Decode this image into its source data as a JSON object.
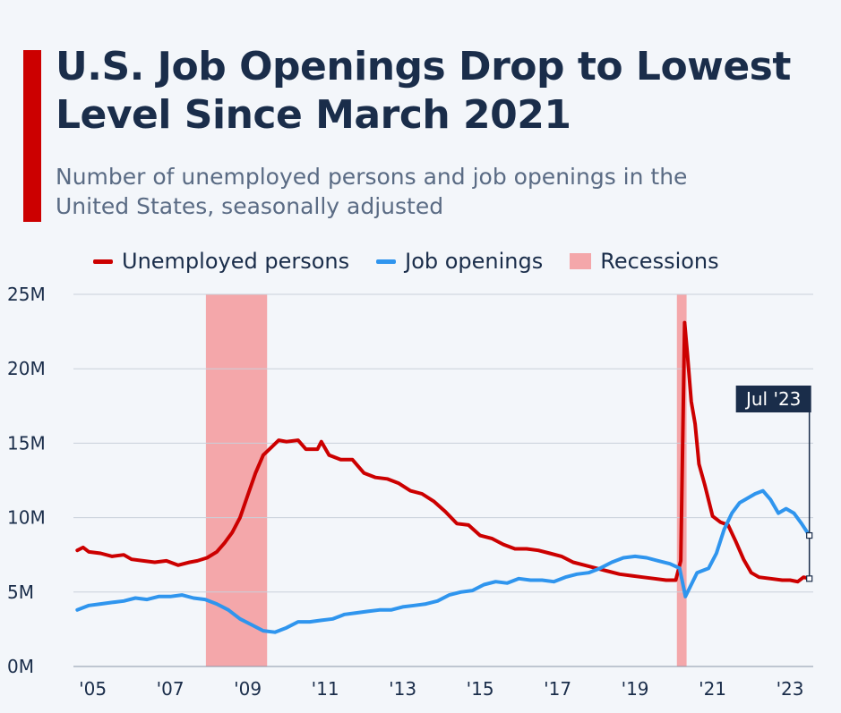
{
  "header": {
    "title": "U.S. Job Openings Drop to Lowest Level Since March 2021",
    "subtitle": "Number of unemployed persons and job openings in the United States, seasonally adjusted"
  },
  "colors": {
    "accent": "#cc0000",
    "unemployed": "#cc0000",
    "openings": "#2f95ee",
    "recession": "#f4a7aa",
    "grid": "#c9d0da",
    "text": "#1a2d4a"
  },
  "legend": {
    "unemployed_label": "Unemployed persons",
    "openings_label": "Job openings",
    "recessions_label": "Recessions"
  },
  "chart_data": {
    "type": "line",
    "xlim": [
      2004.5,
      2023.6
    ],
    "ylim": [
      0,
      25
    ],
    "y_unit": "millions",
    "grid": true,
    "legend_position": "top",
    "ytick_values": [
      0,
      5,
      10,
      15,
      20,
      25
    ],
    "ytick_labels": [
      "0M",
      "5M",
      "10M",
      "15M",
      "20M",
      "25M"
    ],
    "xtick_values": [
      2005,
      2007,
      2009,
      2011,
      2013,
      2015,
      2017,
      2019,
      2021,
      2023
    ],
    "xtick_labels": [
      "'05",
      "'07",
      "'09",
      "'11",
      "'13",
      "'15",
      "'17",
      "'19",
      "'21",
      "'23"
    ],
    "recessions": [
      {
        "start": 2007.92,
        "end": 2009.5
      },
      {
        "start": 2020.08,
        "end": 2020.33
      }
    ],
    "annotation": {
      "label": "Jul '23",
      "x": 2023.5
    },
    "series": [
      {
        "name": "Unemployed persons",
        "points": [
          [
            2004.6,
            7.8
          ],
          [
            2004.75,
            8.0
          ],
          [
            2004.9,
            7.7
          ],
          [
            2005.2,
            7.6
          ],
          [
            2005.5,
            7.4
          ],
          [
            2005.8,
            7.5
          ],
          [
            2006.0,
            7.2
          ],
          [
            2006.3,
            7.1
          ],
          [
            2006.6,
            7.0
          ],
          [
            2006.9,
            7.1
          ],
          [
            2007.2,
            6.8
          ],
          [
            2007.5,
            7.0
          ],
          [
            2007.7,
            7.1
          ],
          [
            2007.95,
            7.3
          ],
          [
            2008.2,
            7.7
          ],
          [
            2008.4,
            8.3
          ],
          [
            2008.6,
            9.0
          ],
          [
            2008.8,
            10.0
          ],
          [
            2009.0,
            11.5
          ],
          [
            2009.2,
            13.0
          ],
          [
            2009.4,
            14.2
          ],
          [
            2009.6,
            14.7
          ],
          [
            2009.8,
            15.2
          ],
          [
            2010.0,
            15.1
          ],
          [
            2010.3,
            15.2
          ],
          [
            2010.5,
            14.6
          ],
          [
            2010.8,
            14.6
          ],
          [
            2010.9,
            15.1
          ],
          [
            2011.1,
            14.2
          ],
          [
            2011.4,
            13.9
          ],
          [
            2011.7,
            13.9
          ],
          [
            2012.0,
            13.0
          ],
          [
            2012.3,
            12.7
          ],
          [
            2012.6,
            12.6
          ],
          [
            2012.9,
            12.3
          ],
          [
            2013.2,
            11.8
          ],
          [
            2013.5,
            11.6
          ],
          [
            2013.8,
            11.1
          ],
          [
            2014.1,
            10.4
          ],
          [
            2014.4,
            9.6
          ],
          [
            2014.7,
            9.5
          ],
          [
            2015.0,
            8.8
          ],
          [
            2015.3,
            8.6
          ],
          [
            2015.6,
            8.2
          ],
          [
            2015.9,
            7.9
          ],
          [
            2016.2,
            7.9
          ],
          [
            2016.5,
            7.8
          ],
          [
            2016.8,
            7.6
          ],
          [
            2017.1,
            7.4
          ],
          [
            2017.4,
            7.0
          ],
          [
            2017.7,
            6.8
          ],
          [
            2018.0,
            6.6
          ],
          [
            2018.3,
            6.4
          ],
          [
            2018.6,
            6.2
          ],
          [
            2018.9,
            6.1
          ],
          [
            2019.2,
            6.0
          ],
          [
            2019.5,
            5.9
          ],
          [
            2019.8,
            5.8
          ],
          [
            2020.05,
            5.8
          ],
          [
            2020.18,
            7.1
          ],
          [
            2020.28,
            23.1
          ],
          [
            2020.35,
            21.0
          ],
          [
            2020.45,
            17.8
          ],
          [
            2020.55,
            16.3
          ],
          [
            2020.65,
            13.6
          ],
          [
            2020.8,
            12.2
          ],
          [
            2021.0,
            10.1
          ],
          [
            2021.2,
            9.7
          ],
          [
            2021.4,
            9.5
          ],
          [
            2021.6,
            8.4
          ],
          [
            2021.8,
            7.2
          ],
          [
            2022.0,
            6.3
          ],
          [
            2022.2,
            6.0
          ],
          [
            2022.5,
            5.9
          ],
          [
            2022.8,
            5.8
          ],
          [
            2023.0,
            5.8
          ],
          [
            2023.2,
            5.7
          ],
          [
            2023.35,
            6.0
          ],
          [
            2023.5,
            5.9
          ]
        ]
      },
      {
        "name": "Job openings",
        "points": [
          [
            2004.6,
            3.8
          ],
          [
            2004.9,
            4.1
          ],
          [
            2005.2,
            4.2
          ],
          [
            2005.5,
            4.3
          ],
          [
            2005.8,
            4.4
          ],
          [
            2006.1,
            4.6
          ],
          [
            2006.4,
            4.5
          ],
          [
            2006.7,
            4.7
          ],
          [
            2007.0,
            4.7
          ],
          [
            2007.3,
            4.8
          ],
          [
            2007.6,
            4.6
          ],
          [
            2007.9,
            4.5
          ],
          [
            2008.2,
            4.2
          ],
          [
            2008.5,
            3.8
          ],
          [
            2008.8,
            3.2
          ],
          [
            2009.1,
            2.8
          ],
          [
            2009.4,
            2.4
          ],
          [
            2009.7,
            2.3
          ],
          [
            2010.0,
            2.6
          ],
          [
            2010.3,
            3.0
          ],
          [
            2010.6,
            3.0
          ],
          [
            2010.9,
            3.1
          ],
          [
            2011.2,
            3.2
          ],
          [
            2011.5,
            3.5
          ],
          [
            2011.8,
            3.6
          ],
          [
            2012.1,
            3.7
          ],
          [
            2012.4,
            3.8
          ],
          [
            2012.7,
            3.8
          ],
          [
            2013.0,
            4.0
          ],
          [
            2013.3,
            4.1
          ],
          [
            2013.6,
            4.2
          ],
          [
            2013.9,
            4.4
          ],
          [
            2014.2,
            4.8
          ],
          [
            2014.5,
            5.0
          ],
          [
            2014.8,
            5.1
          ],
          [
            2015.1,
            5.5
          ],
          [
            2015.4,
            5.7
          ],
          [
            2015.7,
            5.6
          ],
          [
            2016.0,
            5.9
          ],
          [
            2016.3,
            5.8
          ],
          [
            2016.6,
            5.8
          ],
          [
            2016.9,
            5.7
          ],
          [
            2017.2,
            6.0
          ],
          [
            2017.5,
            6.2
          ],
          [
            2017.8,
            6.3
          ],
          [
            2018.1,
            6.6
          ],
          [
            2018.4,
            7.0
          ],
          [
            2018.7,
            7.3
          ],
          [
            2019.0,
            7.4
          ],
          [
            2019.3,
            7.3
          ],
          [
            2019.6,
            7.1
          ],
          [
            2019.9,
            6.9
          ],
          [
            2020.15,
            6.6
          ],
          [
            2020.3,
            4.7
          ],
          [
            2020.45,
            5.5
          ],
          [
            2020.6,
            6.3
          ],
          [
            2020.9,
            6.6
          ],
          [
            2021.1,
            7.6
          ],
          [
            2021.3,
            9.2
          ],
          [
            2021.5,
            10.3
          ],
          [
            2021.7,
            11.0
          ],
          [
            2021.9,
            11.3
          ],
          [
            2022.1,
            11.6
          ],
          [
            2022.3,
            11.8
          ],
          [
            2022.5,
            11.2
          ],
          [
            2022.7,
            10.3
          ],
          [
            2022.9,
            10.6
          ],
          [
            2023.1,
            10.3
          ],
          [
            2023.3,
            9.6
          ],
          [
            2023.5,
            8.8
          ]
        ]
      }
    ]
  }
}
